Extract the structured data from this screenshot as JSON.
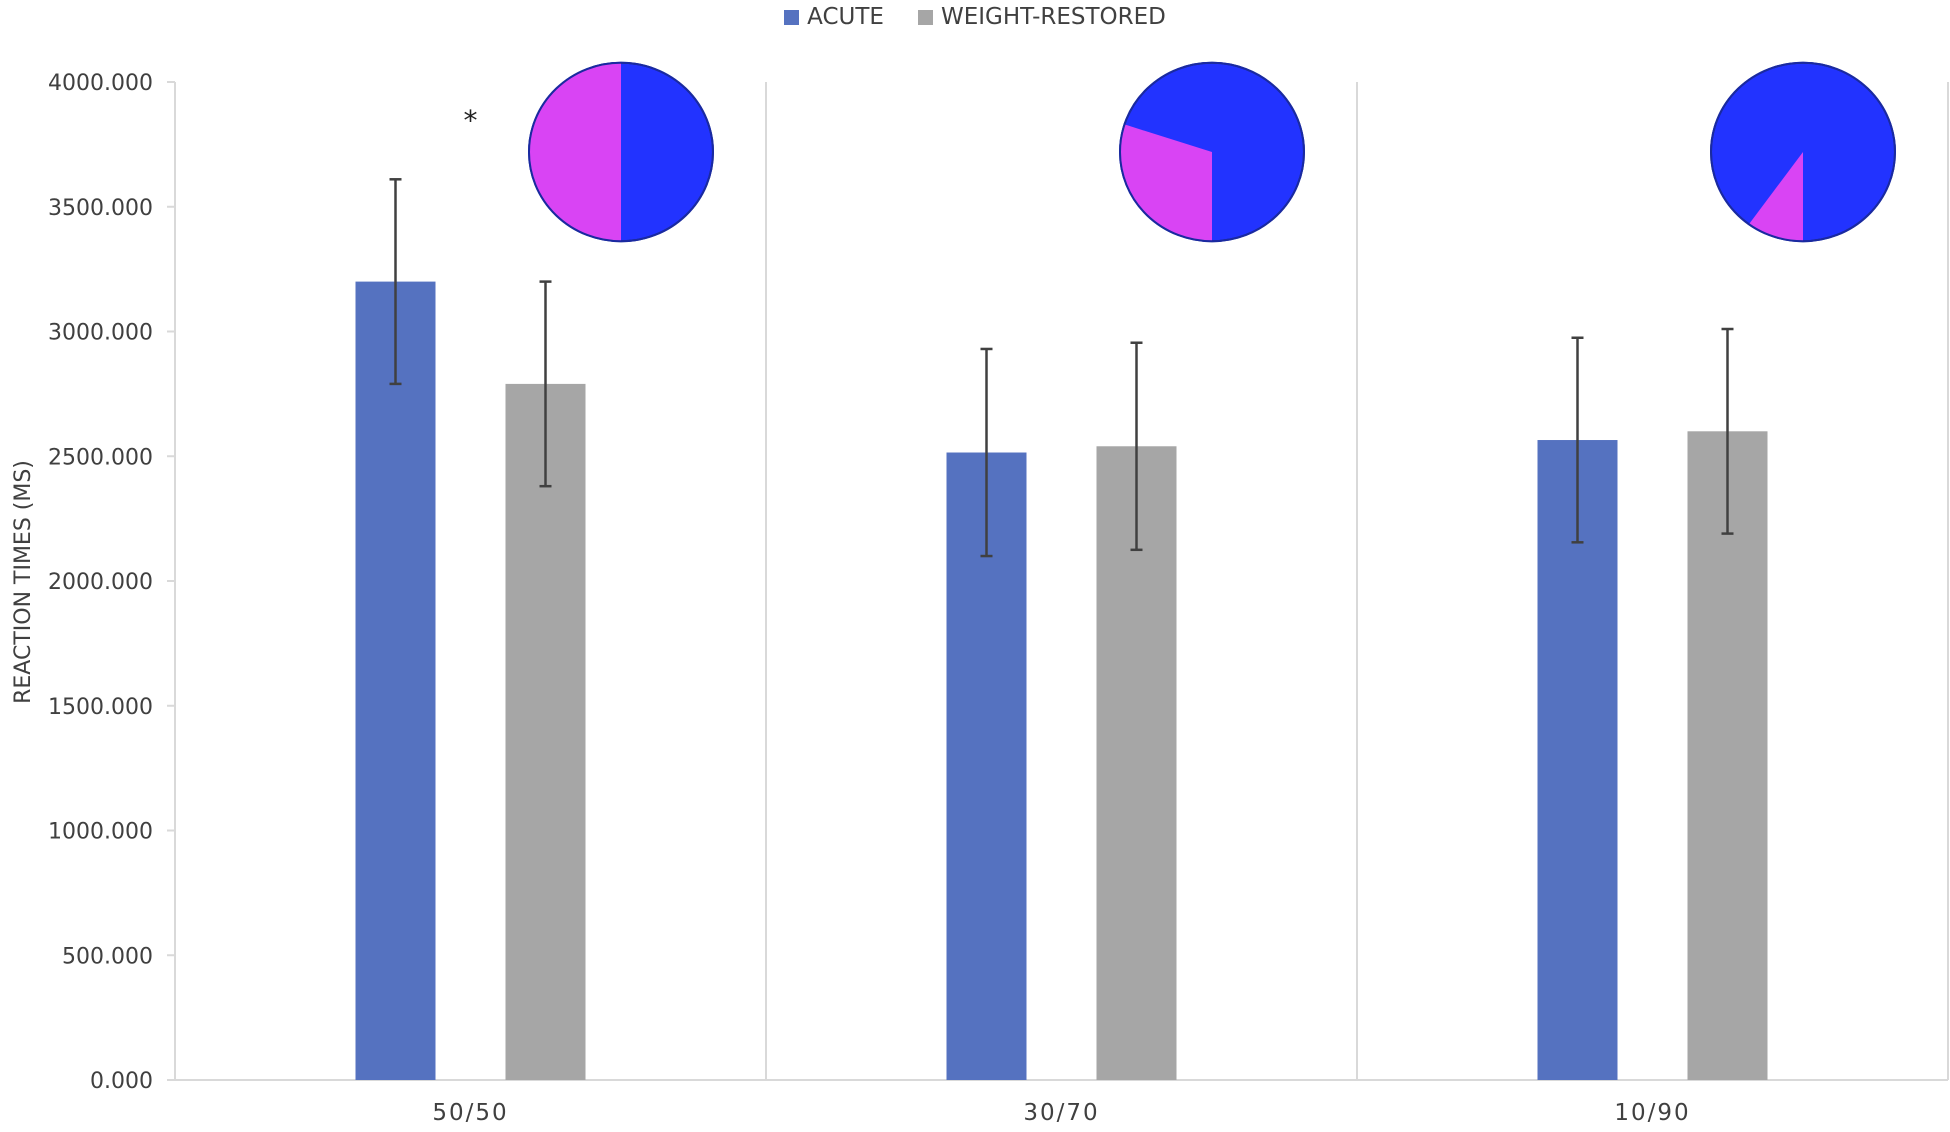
{
  "chart_data": {
    "type": "bar",
    "ylabel": "REACTION TIMES (MS)",
    "ylim": [
      0,
      4000
    ],
    "yticks": [
      "0.000",
      "500.000",
      "1000.000",
      "1500.000",
      "2000.000",
      "2500.000",
      "3000.000",
      "3500.000",
      "4000.000"
    ],
    "grid": false,
    "legend_position": "top-center",
    "categories": [
      "50/50",
      "30/70",
      "10/90"
    ],
    "series": [
      {
        "name": "ACUTE",
        "color": "#5572C0",
        "values": [
          3200,
          2515,
          2565
        ],
        "error": [
          410,
          415,
          410
        ]
      },
      {
        "name": "WEIGHT-RESTORED",
        "color": "#A6A6A6",
        "values": [
          2790,
          2540,
          2600
        ],
        "error": [
          410,
          415,
          410
        ]
      }
    ],
    "annotations": [
      {
        "category": "50/50",
        "text": "*"
      }
    ],
    "pie_insets": [
      {
        "category": "50/50",
        "blue_fraction": 0.5,
        "magenta_fraction": 0.5
      },
      {
        "category": "30/70",
        "blue_fraction": 0.7,
        "magenta_fraction": 0.3
      },
      {
        "category": "10/90",
        "blue_fraction": 0.9,
        "magenta_fraction": 0.1
      }
    ],
    "pie_colors": {
      "blue": "#2233FF",
      "magenta": "#D944F4",
      "outline": "#1A2AA0"
    }
  }
}
